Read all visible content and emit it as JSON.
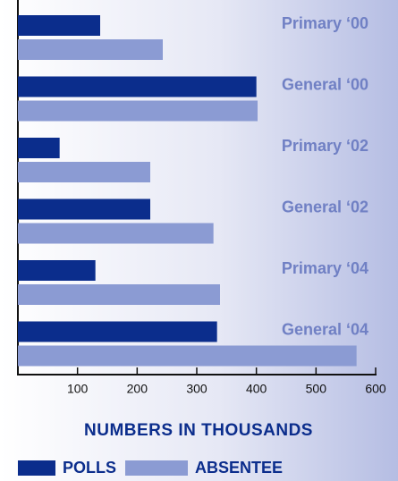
{
  "chart_data": {
    "type": "hbar",
    "xlabel": "NUMBERS IN THOUSANDS",
    "categories": [
      "Primary ‘00",
      "General ‘00",
      "Primary ‘02",
      "General ‘02",
      "Primary ‘04",
      "General ‘04"
    ],
    "series": [
      {
        "name": "POLLS",
        "color": "#0b2d8c",
        "values": [
          138,
          400,
          70,
          222,
          130,
          334
        ]
      },
      {
        "name": "ABSENTEE",
        "color": "#8b9bd3",
        "values": [
          243,
          402,
          222,
          328,
          339,
          568
        ]
      }
    ],
    "xlim": [
      0,
      600
    ],
    "xticks": [
      100,
      200,
      300,
      400,
      500,
      600
    ]
  }
}
